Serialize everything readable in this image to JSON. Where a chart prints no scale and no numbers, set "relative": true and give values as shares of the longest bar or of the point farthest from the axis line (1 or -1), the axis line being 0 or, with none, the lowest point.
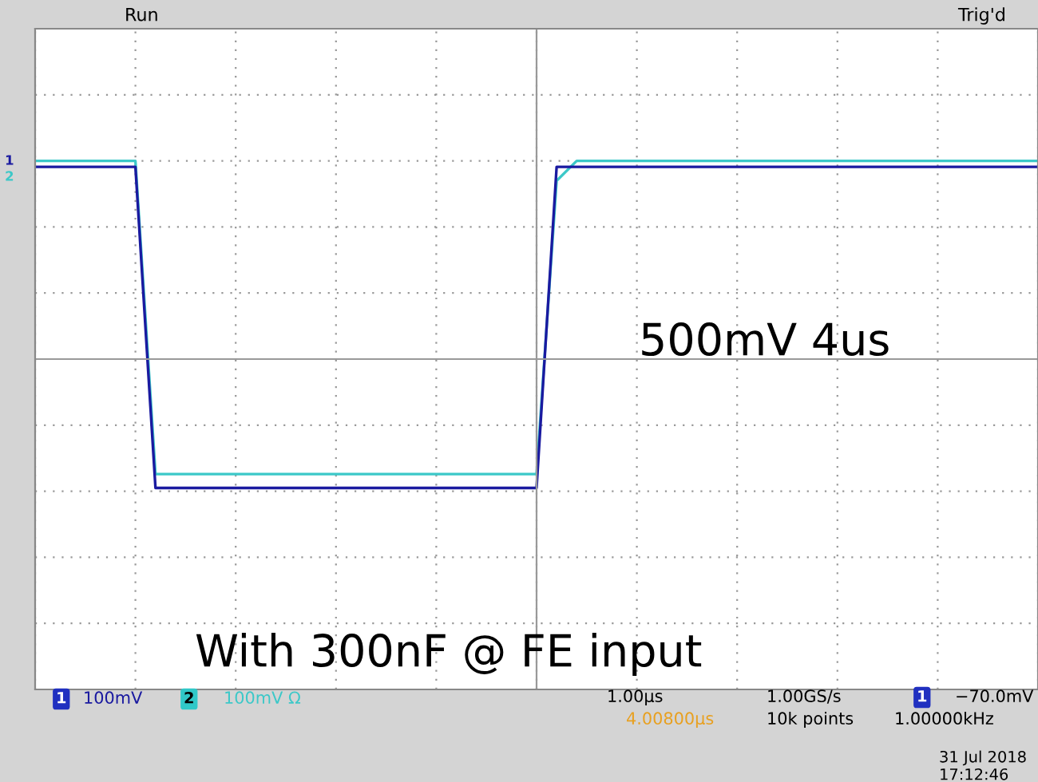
{
  "chart_data": {
    "type": "line",
    "relative": true,
    "grid": true,
    "tick_labels": false,
    "marker": "none",
    "line_style": "solid",
    "categories": [
      null,
      null,
      null,
      null,
      null,
      null,
      null,
      null,
      null,
      null,
      null,
      null,
      null,
      null,
      null,
      null,
      null,
      null,
      null,
      null,
      null,
      null,
      null,
      null,
      null,
      null,
      null,
      null,
      null,
      null,
      null,
      null,
      null,
      null,
      null,
      null,
      null,
      null,
      null,
      null,
      null,
      null,
      null,
      null,
      null,
      null,
      null,
      null,
      null,
      null,
      null
    ],
    "series": [
      {
        "color": "#3cc8c8",
        "values": [
          1.0,
          1.0,
          1.0,
          1.0,
          1.0,
          1.0,
          -0.58,
          -0.58,
          -0.58,
          -0.58,
          -0.58,
          -0.58,
          -0.58,
          -0.58,
          -0.58,
          -0.58,
          -0.58,
          -0.58,
          -0.58,
          -0.58,
          -0.58,
          -0.58,
          -0.58,
          -0.58,
          -0.58,
          -0.58,
          0.9,
          1.0,
          1.0,
          1.0,
          1.0,
          1.0,
          1.0,
          1.0,
          1.0,
          1.0,
          1.0,
          1.0,
          1.0,
          1.0,
          1.0,
          1.0,
          1.0,
          1.0,
          1.0,
          1.0,
          1.0,
          1.0,
          1.0,
          1.0,
          1.0
        ]
      },
      {
        "color": "#1a1aa0",
        "values": [
          0.97,
          0.97,
          0.97,
          0.97,
          0.97,
          0.97,
          -0.65,
          -0.65,
          -0.65,
          -0.65,
          -0.65,
          -0.65,
          -0.65,
          -0.65,
          -0.65,
          -0.65,
          -0.65,
          -0.65,
          -0.65,
          -0.65,
          -0.65,
          -0.65,
          -0.65,
          -0.65,
          -0.65,
          -0.65,
          0.97,
          0.97,
          0.97,
          0.97,
          0.97,
          0.97,
          0.97,
          0.97,
          0.97,
          0.97,
          0.97,
          0.97,
          0.97,
          0.97,
          0.97,
          0.97,
          0.97,
          0.97,
          0.97,
          0.97,
          0.97,
          0.97,
          0.97,
          0.97,
          0.97
        ]
      }
    ],
    "annotations": [
      "Run",
      "Trig'd",
      "500mV 4us",
      "With 300nF @ FE input",
      "1",
      "100mV",
      "2",
      "100mV Ω",
      "1.00µs",
      "4.00800µs",
      "1.00GS/s",
      "10k points",
      "1",
      "−70.0mV",
      "1.00000kHz",
      "31 Jul 2018",
      "17:12:46",
      "1",
      "2"
    ]
  }
}
